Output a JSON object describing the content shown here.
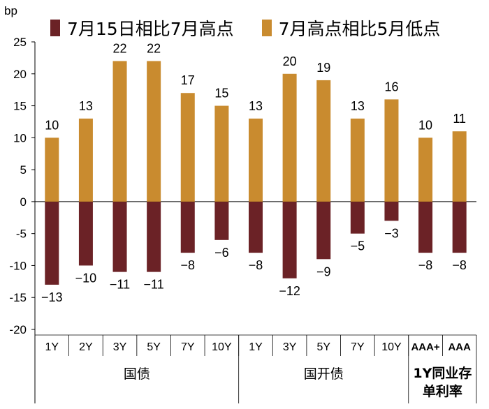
{
  "chart_data": {
    "type": "bar",
    "ylabel": "bp",
    "ylim": [
      -20,
      25
    ],
    "yticks": [
      25,
      20,
      15,
      10,
      5,
      0,
      -5,
      -10,
      -15,
      -20
    ],
    "categories": [
      "1Y",
      "2Y",
      "3Y",
      "5Y",
      "7Y",
      "10Y",
      "1Y",
      "3Y",
      "5Y",
      "7Y",
      "10Y",
      "AAA+",
      "AAA"
    ],
    "groups": [
      {
        "label": "国债",
        "span": 6
      },
      {
        "label": "国开债",
        "span": 5
      },
      {
        "label": "1Y同业存单利率",
        "span": 2
      }
    ],
    "series": [
      {
        "name": "7月15日相比7月高点",
        "color": "#6b2226",
        "values": [
          -13,
          -10,
          -11,
          -11,
          -8,
          -6,
          -8,
          -12,
          -9,
          -5,
          -3,
          -8,
          -8
        ]
      },
      {
        "name": "7月高点相比5月低点",
        "color": "#c98b2f",
        "values": [
          10,
          13,
          22,
          22,
          17,
          15,
          13,
          20,
          19,
          13,
          16,
          10,
          11
        ]
      }
    ]
  }
}
